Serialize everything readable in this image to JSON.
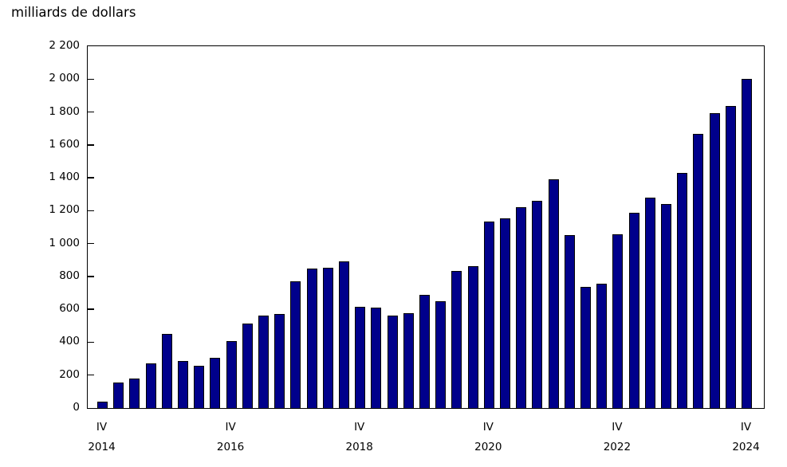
{
  "chart_data": {
    "type": "bar",
    "title": "milliards de dollars",
    "ylabel": "milliards de dollars",
    "xlabel": "",
    "ylim": [
      0,
      2200
    ],
    "grid": false,
    "legend": null,
    "bar_color": "#00008B",
    "bar_border_color": "#000000",
    "y_ticks": [
      0,
      200,
      400,
      600,
      800,
      1000,
      1200,
      1400,
      1600,
      1800,
      2000,
      2200
    ],
    "y_tick_labels": [
      "0",
      "200",
      "400",
      "600",
      "800",
      "1 000",
      "1 200",
      "1 400",
      "1 600",
      "1 800",
      "2 000",
      "2 200"
    ],
    "x": [
      "IV 2014",
      "I 2015",
      "II 2015",
      "III 2015",
      "IV 2015",
      "I 2016",
      "II 2016",
      "III 2016",
      "IV 2016",
      "I 2017",
      "II 2017",
      "III 2017",
      "IV 2017",
      "I 2018",
      "II 2018",
      "III 2018",
      "IV 2018",
      "I 2019",
      "II 2019",
      "III 2019",
      "IV 2019",
      "I 2020",
      "II 2020",
      "III 2020",
      "IV 2020",
      "I 2021",
      "II 2021",
      "III 2021",
      "IV 2021",
      "I 2022",
      "II 2022",
      "III 2022",
      "IV 2022",
      "I 2023",
      "II 2023",
      "III 2023",
      "IV 2023",
      "I 2024",
      "II 2024",
      "III 2024",
      "IV 2024"
    ],
    "values": [
      37,
      155,
      180,
      270,
      450,
      285,
      255,
      305,
      405,
      515,
      560,
      570,
      770,
      850,
      855,
      890,
      615,
      610,
      560,
      575,
      690,
      650,
      835,
      865,
      1135,
      1155,
      1220,
      1260,
      1390,
      1050,
      735,
      755,
      1055,
      1185,
      1280,
      1240,
      1430,
      1665,
      1795,
      1835,
      2000
    ],
    "x_tick_labels": [
      {
        "index": 0,
        "line1": "IV",
        "line2": "2014"
      },
      {
        "index": 8,
        "line1": "IV",
        "line2": "2016"
      },
      {
        "index": 16,
        "line1": "IV",
        "line2": "2018"
      },
      {
        "index": 24,
        "line1": "IV",
        "line2": "2020"
      },
      {
        "index": 32,
        "line1": "IV",
        "line2": "2022"
      },
      {
        "index": 40,
        "line1": "IV",
        "line2": "2024"
      }
    ]
  }
}
